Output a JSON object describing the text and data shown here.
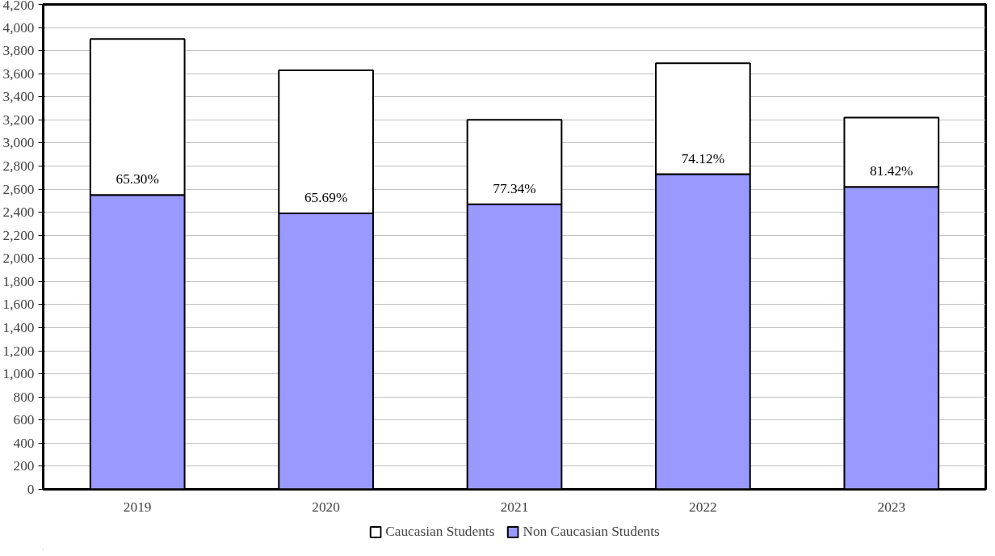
{
  "chart_data": {
    "type": "bar",
    "stacked": true,
    "categories": [
      "2019",
      "2020",
      "2021",
      "2022",
      "2023"
    ],
    "series": [
      {
        "name": "Non Caucasian Students",
        "color": "#9999ff",
        "values": [
          2550,
          2390,
          2470,
          2730,
          2620
        ]
      },
      {
        "name": "Caucasian Students",
        "color": "#ffffff",
        "values": [
          1350,
          1240,
          730,
          960,
          600
        ]
      }
    ],
    "ylim": [
      0,
      4200
    ],
    "yticks": [
      {
        "value": 0,
        "label": "0"
      },
      {
        "value": 200,
        "label": "200"
      },
      {
        "value": 400,
        "label": "400"
      },
      {
        "value": 600,
        "label": "600"
      },
      {
        "value": 800,
        "label": "800"
      },
      {
        "value": 1000,
        "label": "1,000"
      },
      {
        "value": 1200,
        "label": "1,200"
      },
      {
        "value": 1400,
        "label": "1,400"
      },
      {
        "value": 1600,
        "label": "1,600"
      },
      {
        "value": 1800,
        "label": "1,800"
      },
      {
        "value": 2000,
        "label": "2,000"
      },
      {
        "value": 2200,
        "label": "2,200"
      },
      {
        "value": 2400,
        "label": "2,400"
      },
      {
        "value": 2600,
        "label": "2,600"
      },
      {
        "value": 2800,
        "label": "2,800"
      },
      {
        "value": 3000,
        "label": "3,000"
      },
      {
        "value": 3200,
        "label": "3,200"
      },
      {
        "value": 3400,
        "label": "3,400"
      },
      {
        "value": 3600,
        "label": "3,600"
      },
      {
        "value": 3800,
        "label": "3,800"
      },
      {
        "value": 4000,
        "label": "4,000"
      },
      {
        "value": 4200,
        "label": "4,200"
      }
    ],
    "annotations": [
      {
        "text": "65.30%",
        "x": "2019",
        "y": 2550
      },
      {
        "text": "65.69%",
        "x": "2020",
        "y": 2390
      },
      {
        "text": "77.34%",
        "x": "2021",
        "y": 2470
      },
      {
        "text": "74.12%",
        "x": "2022",
        "y": 2730
      },
      {
        "text": "81.42%",
        "x": "2023",
        "y": 2620
      }
    ],
    "grid": "y",
    "legend": "bottom"
  }
}
